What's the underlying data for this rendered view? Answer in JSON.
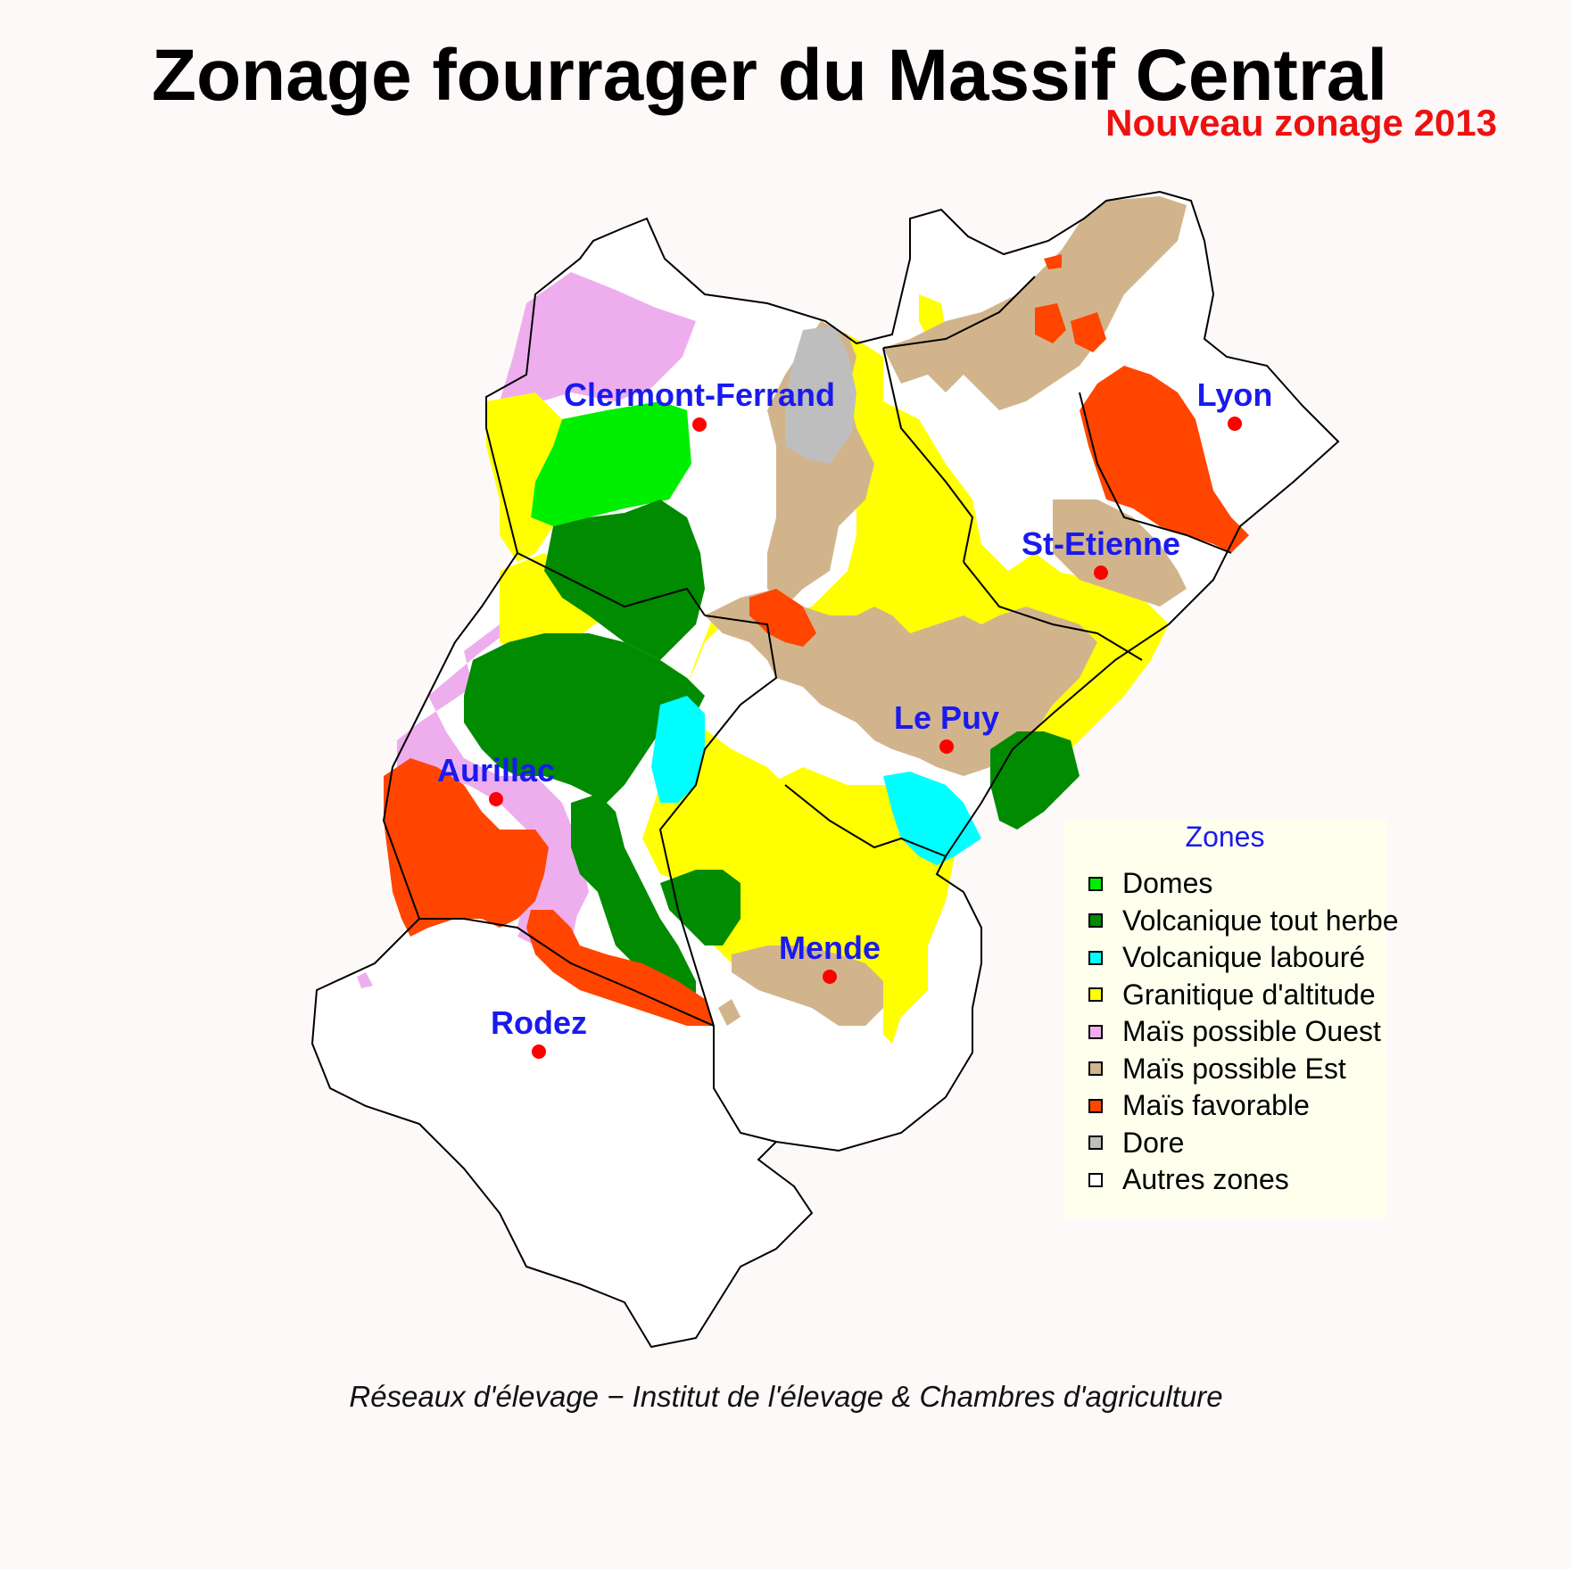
{
  "title": "Zonage fourrager du Massif Central",
  "subtitle": "Nouveau zonage 2013",
  "source": "Réseaux d'élevage − Institut de l'élevage & Chambres d'agriculture",
  "legend": {
    "title": "Zones",
    "items": [
      {
        "label": "Domes",
        "color": "#00ee00"
      },
      {
        "label": "Volcanique tout herbe",
        "color": "#008b00"
      },
      {
        "label": "Volcanique labouré",
        "color": "#00ffff"
      },
      {
        "label": "Granitique d'altitude",
        "color": "#ffff00"
      },
      {
        "label": "Maïs possible Ouest",
        "color": "#eeaeee"
      },
      {
        "label": "Maïs possible Est",
        "color": "#d2b48c"
      },
      {
        "label": "Maïs favorable",
        "color": "#ff4500"
      },
      {
        "label": "Dore",
        "color": "#bebebe"
      },
      {
        "label": "Autres zones",
        "color": "#ffffff"
      }
    ]
  },
  "cities": [
    {
      "name": "Clermont-Ferrand"
    },
    {
      "name": "Lyon"
    },
    {
      "name": "St-Etienne"
    },
    {
      "name": "Le Puy"
    },
    {
      "name": "Aurillac"
    },
    {
      "name": "Mende"
    },
    {
      "name": "Rodez"
    }
  ],
  "colors": {
    "city_marker": "#ff0000",
    "city_label": "#1a1aee",
    "subtitle": "#ee1111",
    "border": "#000000"
  }
}
